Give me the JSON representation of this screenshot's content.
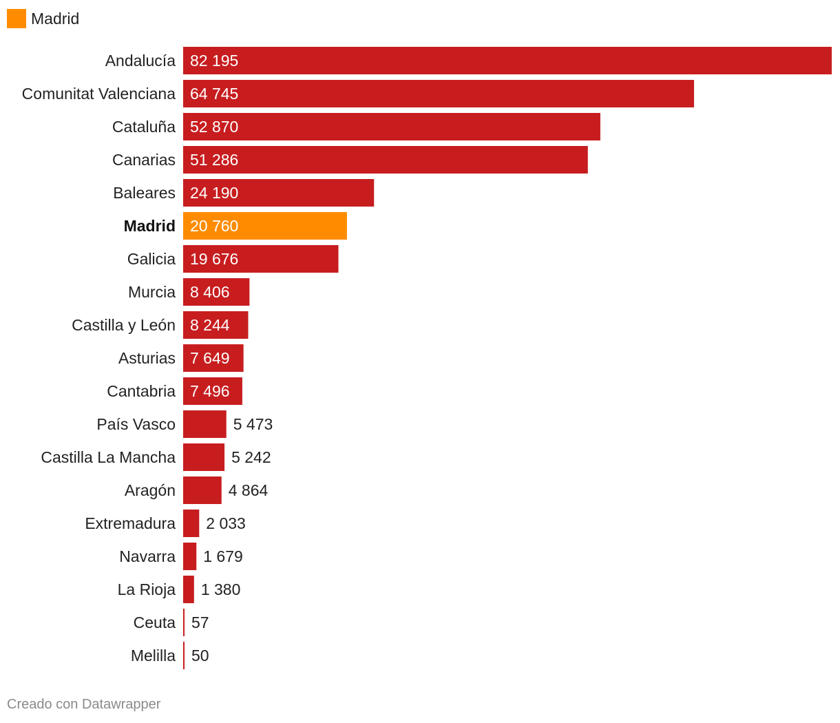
{
  "legend": {
    "label": "Madrid",
    "color": "#ff8c00"
  },
  "footer": {
    "text": "Creado con Datawrapper"
  },
  "chart_data": {
    "type": "bar",
    "orientation": "horizontal",
    "highlight": "Madrid",
    "colors": {
      "default": "#c71d1f",
      "highlight": "#ff8c00"
    },
    "value_labels": [
      "82 195",
      "64 745",
      "52 870",
      "51 286",
      "24 190",
      "20 760",
      "19 676",
      "8 406",
      "8 244",
      "7 649",
      "7 496",
      "5 473",
      "5 242",
      "4 864",
      "2 033",
      "1 679",
      "1 380",
      "57",
      "50"
    ],
    "categories": [
      "Andalucía",
      "Comunitat Valenciana",
      "Cataluña",
      "Canarias",
      "Baleares",
      "Madrid",
      "Galicia",
      "Murcia",
      "Castilla y León",
      "Asturias",
      "Cantabria",
      "País Vasco",
      "Castilla La Mancha",
      "Aragón",
      "Extremadura",
      "Navarra",
      "La Rioja",
      "Ceuta",
      "Melilla"
    ],
    "values": [
      82195,
      64745,
      52870,
      51286,
      24190,
      20760,
      19676,
      8406,
      8244,
      7649,
      7496,
      5473,
      5242,
      4864,
      2033,
      1679,
      1380,
      57,
      50
    ],
    "xlim": [
      0,
      82195
    ],
    "grid": false
  }
}
